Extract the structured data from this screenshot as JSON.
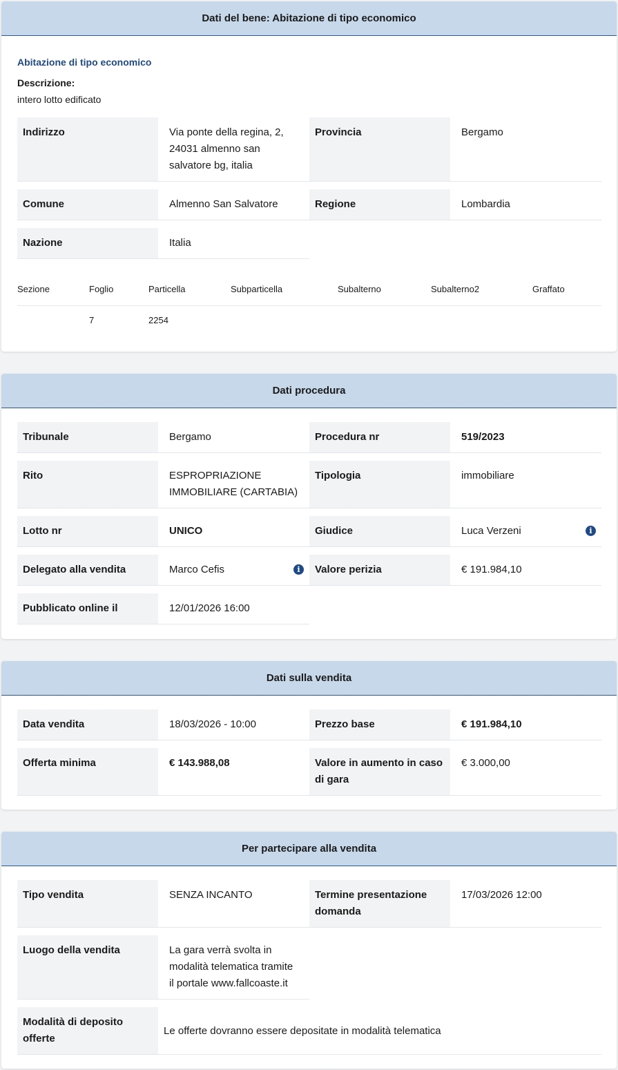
{
  "bene": {
    "header": "Dati del bene: Abitazione di tipo economico",
    "title": "Abitazione di tipo economico",
    "desc_label": "Descrizione:",
    "desc_value": "intero lotto edificato",
    "indirizzo_label": "Indirizzo",
    "indirizzo_value": "Via ponte della regina, 2, 24031 almenno san salvatore bg, italia",
    "provincia_label": "Provincia",
    "provincia_value": "Bergamo",
    "comune_label": "Comune",
    "comune_value": "Almenno San Salvatore",
    "regione_label": "Regione",
    "regione_value": "Lombardia",
    "nazione_label": "Nazione",
    "nazione_value": "Italia",
    "catasto": {
      "headers": [
        "Sezione",
        "Foglio",
        "Particella",
        "Subparticella",
        "Subalterno",
        "Subalterno2",
        "Graffato"
      ],
      "row": [
        "",
        "7",
        "2254",
        "",
        "",
        "",
        ""
      ]
    }
  },
  "procedura": {
    "header": "Dati procedura",
    "tribunale_label": "Tribunale",
    "tribunale_value": "Bergamo",
    "procedura_label": "Procedura nr",
    "procedura_value": "519/2023",
    "rito_label": "Rito",
    "rito_value": "ESPROPRIAZIONE IMMOBILIARE (CARTABIA)",
    "tipologia_label": "Tipologia",
    "tipologia_value": "immobiliare",
    "lotto_label": "Lotto nr",
    "lotto_value": "UNICO",
    "giudice_label": "Giudice",
    "giudice_value": "Luca Verzeni",
    "delegato_label": "Delegato alla vendita",
    "delegato_value": "Marco Cefis",
    "perizia_label": "Valore perizia",
    "perizia_value": "€ 191.984,10",
    "pubblicato_label": "Pubblicato online il",
    "pubblicato_value": "12/01/2026 16:00",
    "info_glyph": "i"
  },
  "vendita": {
    "header": "Dati sulla vendita",
    "data_label": "Data vendita",
    "data_value": "18/03/2026 - 10:00",
    "prezzo_label": "Prezzo base",
    "prezzo_value": "€ 191.984,10",
    "offerta_label": "Offerta minima",
    "offerta_value": "€ 143.988,08",
    "aumento_label": "Valore in aumento in caso di gara",
    "aumento_value": "€ 3.000,00"
  },
  "partecipare": {
    "header": "Per partecipare alla vendita",
    "tipo_label": "Tipo vendita",
    "tipo_value": "SENZA INCANTO",
    "termine_label": "Termine presentazione domanda",
    "termine_value": "17/03/2026 12:00",
    "luogo_label": "Luogo della vendita",
    "luogo_value": "La gara verrà svolta in modalità telematica tramite il portale www.fallcoaste.it",
    "deposito_label": "Modalità di deposito offerte",
    "deposito_value": "Le offerte dovranno essere depositate in modalità telematica"
  }
}
